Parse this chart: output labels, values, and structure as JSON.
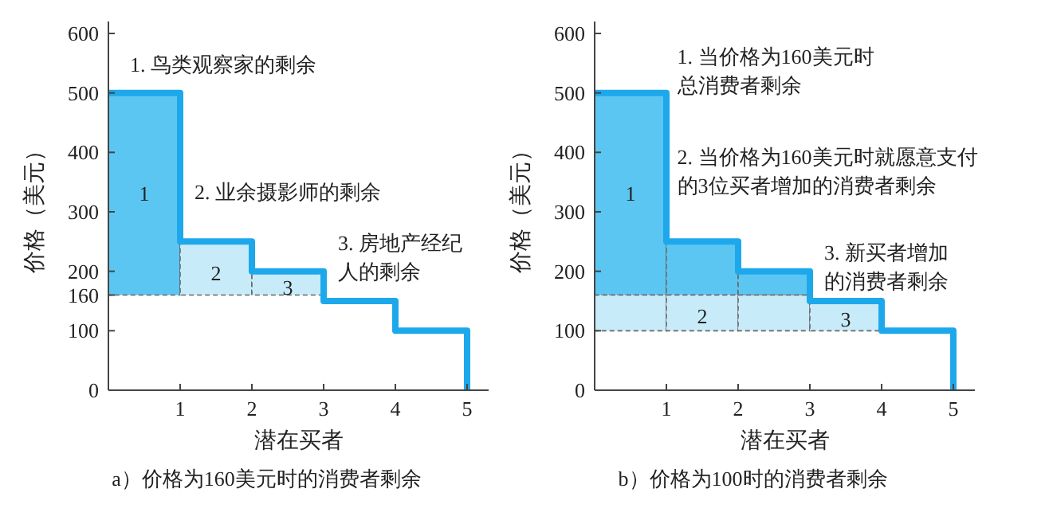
{
  "chart_data": [
    {
      "type": "step",
      "title": "a）价格为160美元时的消费者剩余",
      "xlabel": "潜在买者",
      "ylabel": "价格（美元）",
      "xlim": [
        0,
        5.3
      ],
      "ylim": [
        0,
        620
      ],
      "xticks": [
        1,
        2,
        3,
        4,
        5
      ],
      "yticks": [
        0,
        100,
        160,
        200,
        300,
        400,
        500,
        600
      ],
      "series": [
        {
          "type": "bar",
          "color": "#5cc6f2",
          "x": [
            0.5
          ],
          "base": [
            160
          ],
          "values": [
            340
          ]
        },
        {
          "type": "bar",
          "color": "#c8ebfa",
          "x": [
            1.5,
            2.5
          ],
          "base": [
            160,
            160
          ],
          "values": [
            90,
            40
          ]
        },
        {
          "color": "#1ea8ec",
          "x": [
            0,
            1,
            2,
            3,
            4,
            5
          ],
          "values": [
            500,
            250,
            200,
            150,
            100,
            0
          ]
        }
      ],
      "annotations": [
        "1",
        "2",
        "3",
        "1. 鸟类观察家的剩余",
        "2. 业余摄影师的剩余",
        "3. 房地产经纪人的剩余"
      ]
    },
    {
      "type": "step",
      "title": "b）价格为100时的消费者剩余",
      "xlabel": "潜在买者",
      "ylabel": "价格（美元）",
      "xlim": [
        0,
        5.3
      ],
      "ylim": [
        0,
        620
      ],
      "xticks": [
        1,
        2,
        3,
        4,
        5
      ],
      "yticks": [
        0,
        100,
        200,
        300,
        400,
        500,
        600
      ],
      "series": [
        {
          "type": "bar",
          "color": "#5cc6f2",
          "x": [
            0.5,
            1.5,
            2.5
          ],
          "base": [
            160,
            160,
            160
          ],
          "values": [
            340,
            90,
            40
          ]
        },
        {
          "type": "bar",
          "color": "#c8ebfa",
          "x": [
            0.5,
            1.5,
            2.5,
            3.5
          ],
          "base": [
            100,
            100,
            100,
            100
          ],
          "values": [
            60,
            60,
            60,
            50
          ]
        },
        {
          "color": "#1ea8ec",
          "x": [
            0,
            1,
            2,
            3,
            4,
            5
          ],
          "values": [
            500,
            250,
            200,
            150,
            100,
            0
          ]
        }
      ],
      "annotations": [
        "1",
        "2",
        "3",
        "1. 当价格为160美元时总消费者剩余",
        "2. 当价格为160美元时就愿意支付的3位买者增加的消费者剩余",
        "3. 新买者增加的消费者剩余"
      ]
    }
  ]
}
